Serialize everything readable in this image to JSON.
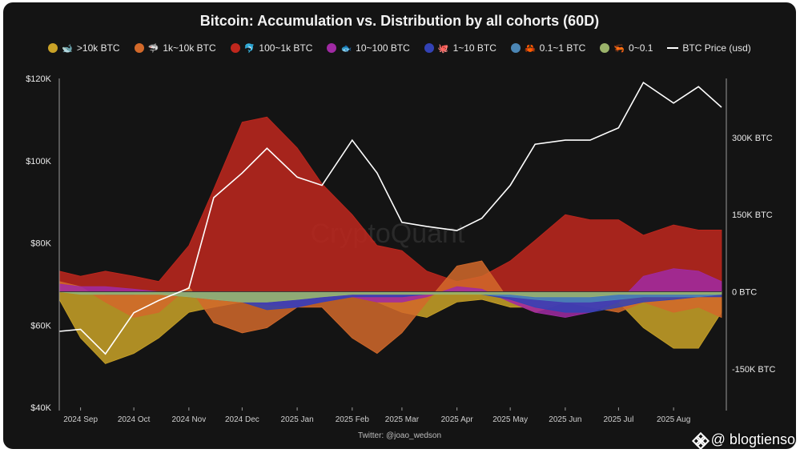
{
  "chart_data": {
    "type": "area",
    "title": "Bitcoin: Accumulation vs. Distribution by all cohorts (60D)",
    "x_tick_labels": [
      "2024 Sep",
      "2024 Oct",
      "2024 Nov",
      "2024 Dec",
      "2025 Jan",
      "2025 Feb",
      "2025 Mar",
      "2025 Apr",
      "2025 May",
      "2025 Jun",
      "2025 Jul",
      "2025 Aug"
    ],
    "x_dates": [
      "2024-08-20",
      "2024-09-01",
      "2024-09-15",
      "2024-10-01",
      "2024-10-15",
      "2024-11-01",
      "2024-11-15",
      "2024-12-01",
      "2024-12-15",
      "2025-01-01",
      "2025-01-15",
      "2025-02-01",
      "2025-02-15",
      "2025-03-01",
      "2025-03-15",
      "2025-04-01",
      "2025-04-15",
      "2025-05-01",
      "2025-05-15",
      "2025-06-01",
      "2025-06-15",
      "2025-07-01",
      "2025-07-15",
      "2025-08-01",
      "2025-08-15",
      "2025-08-28"
    ],
    "y_left": {
      "label_ticks": [
        "$120K",
        "$100K",
        "$80K",
        "$60K",
        "$40K"
      ],
      "range": [
        40000,
        120000
      ],
      "tick_values": [
        120000,
        100000,
        80000,
        60000,
        40000
      ]
    },
    "y_right": {
      "label_ticks": [
        "300K BTC",
        "150K BTC",
        "0 BTC",
        "-150K BTC"
      ],
      "range": [
        -225000,
        415000
      ],
      "tick_values": [
        300000,
        150000,
        0,
        -150000
      ]
    },
    "series": [
      {
        "name": ">10k BTC",
        "glyph": "🐋",
        "color": "#c9a227",
        "values": [
          -15000,
          -90000,
          -140000,
          -120000,
          -90000,
          -40000,
          -30000,
          -20000,
          -10000,
          -5000,
          0,
          -10000,
          -20000,
          -40000,
          -50000,
          -20000,
          -15000,
          -30000,
          -30000,
          -20000,
          -30000,
          -20000,
          -70000,
          -110000,
          -110000,
          -40000
        ]
      },
      {
        "name": "1k~10k BTC",
        "glyph": "🦈",
        "color": "#d2692a",
        "values": [
          20000,
          10000,
          -20000,
          -50000,
          -40000,
          10000,
          -60000,
          -80000,
          -70000,
          -30000,
          -30000,
          -90000,
          -120000,
          -80000,
          -20000,
          50000,
          60000,
          -20000,
          -40000,
          -20000,
          -30000,
          -40000,
          -20000,
          -40000,
          -30000,
          -50000
        ]
      },
      {
        "name": "100~1k BTC",
        "glyph": "🐬",
        "color": "#c0271d",
        "values": [
          40000,
          30000,
          40000,
          30000,
          20000,
          90000,
          200000,
          330000,
          340000,
          280000,
          210000,
          150000,
          90000,
          80000,
          40000,
          20000,
          30000,
          60000,
          100000,
          150000,
          140000,
          140000,
          110000,
          130000,
          120000,
          120000
        ]
      },
      {
        "name": "10~100 BTC",
        "glyph": "🐟",
        "color": "#a02aa3",
        "values": [
          15000,
          10000,
          10000,
          5000,
          0,
          -5000,
          -10000,
          -20000,
          -25000,
          -30000,
          -20000,
          -10000,
          -20000,
          -20000,
          -10000,
          10000,
          5000,
          -20000,
          -40000,
          -50000,
          -40000,
          -20000,
          30000,
          45000,
          40000,
          20000
        ]
      },
      {
        "name": "1~10 BTC",
        "glyph": "🐙",
        "color": "#3342b5",
        "values": [
          0,
          0,
          -5000,
          -5000,
          0,
          -10000,
          -15000,
          -20000,
          -35000,
          -30000,
          -20000,
          -10000,
          -10000,
          -10000,
          -5000,
          0,
          -5000,
          -15000,
          -30000,
          -40000,
          -40000,
          -30000,
          -20000,
          -15000,
          -10000,
          -10000
        ]
      },
      {
        "name": "0.1~1 BTC",
        "glyph": "🦀",
        "color": "#4b86b5",
        "values": [
          0,
          -5000,
          -5000,
          -5000,
          -5000,
          -10000,
          -15000,
          -20000,
          -20000,
          -15000,
          -10000,
          -5000,
          -5000,
          -5000,
          -5000,
          0,
          -5000,
          -10000,
          -15000,
          -20000,
          -20000,
          -15000,
          -10000,
          -10000,
          -10000,
          -5000
        ]
      },
      {
        "name": "0~0.1",
        "glyph": "🦐",
        "color": "#9bb36a",
        "values": [
          0,
          -5000,
          -5000,
          -5000,
          -5000,
          -10000,
          -15000,
          -20000,
          -20000,
          -15000,
          -10000,
          -5000,
          -5000,
          -5000,
          -5000,
          -5000,
          -5000,
          -5000,
          -10000,
          -10000,
          -10000,
          -5000,
          -5000,
          -5000,
          -5000,
          -5000
        ]
      },
      {
        "name": "BTC Price (usd)",
        "axis": "left",
        "color": "#ffffff",
        "values": [
          58500,
          59000,
          53000,
          63000,
          66000,
          69000,
          91000,
          97000,
          103000,
          96000,
          94000,
          105000,
          97000,
          85000,
          84000,
          83000,
          86000,
          94000,
          104000,
          105000,
          105000,
          108000,
          119000,
          114000,
          118000,
          113000
        ]
      }
    ],
    "legend_position": "top",
    "grid": false
  },
  "watermark": "CryptoQuant",
  "credit": "Twitter: @joao_wedson",
  "handle": "@ blogtienso"
}
